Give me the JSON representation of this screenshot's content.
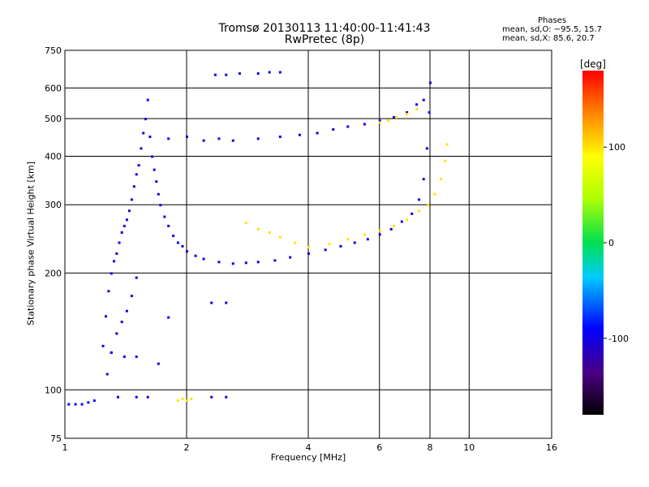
{
  "chart_data": {
    "type": "scatter",
    "title": "Tromsø 20130113 11:40:00-11:41:43",
    "subtitle": "RwPretec (8p)",
    "xlabel": "Frequency [MHz]",
    "ylabel": "Stationary phase Virtual Height [km]",
    "x_scale": "log",
    "y_scale": "log",
    "xlim": [
      1,
      16
    ],
    "ylim": [
      75,
      750
    ],
    "grid": true,
    "x_ticks": [
      1,
      2,
      4,
      6,
      8,
      10,
      16
    ],
    "x_tick_labels": [
      "1",
      "2",
      "4",
      "6",
      "8",
      "10",
      "16"
    ],
    "y_ticks": [
      75,
      100,
      200,
      300,
      400,
      500,
      600,
      750
    ],
    "y_tick_labels": [
      "75",
      "100",
      "200",
      "300",
      "400",
      "500",
      "600",
      "750"
    ],
    "stats": {
      "heading": "Phases",
      "lines": [
        "mean, sd,O: −95.5, 15.7",
        "mean, sd,X:  85.6, 20.7"
      ]
    },
    "colorbar": {
      "title": "[deg]",
      "range": [
        -180,
        180
      ],
      "ticks": [
        100,
        0,
        -100
      ],
      "tick_labels": [
        "100",
        "0",
        "-100"
      ]
    },
    "traces": [
      {
        "name": "",
        "phase": -100,
        "points": [
          [
            1.02,
            92
          ],
          [
            1.06,
            92
          ],
          [
            1.1,
            92
          ],
          [
            1.14,
            93
          ],
          [
            1.18,
            94
          ],
          [
            1.24,
            130
          ],
          [
            1.26,
            155
          ],
          [
            1.28,
            180
          ],
          [
            1.3,
            200
          ],
          [
            1.32,
            215
          ],
          [
            1.34,
            225
          ],
          [
            1.36,
            240
          ],
          [
            1.38,
            255
          ],
          [
            1.4,
            265
          ],
          [
            1.42,
            275
          ],
          [
            1.27,
            110
          ],
          [
            1.3,
            125
          ],
          [
            1.34,
            140
          ],
          [
            1.38,
            150
          ],
          [
            1.42,
            160
          ],
          [
            1.46,
            175
          ],
          [
            1.5,
            195
          ],
          [
            1.44,
            290
          ],
          [
            1.46,
            310
          ],
          [
            1.48,
            335
          ],
          [
            1.5,
            360
          ],
          [
            1.52,
            380
          ],
          [
            1.54,
            420
          ],
          [
            1.56,
            460
          ],
          [
            1.58,
            500
          ],
          [
            1.6,
            560
          ],
          [
            1.62,
            450
          ],
          [
            1.64,
            400
          ],
          [
            1.66,
            370
          ],
          [
            1.68,
            345
          ],
          [
            1.7,
            320
          ],
          [
            1.72,
            300
          ],
          [
            1.76,
            280
          ],
          [
            1.8,
            265
          ],
          [
            1.85,
            250
          ],
          [
            1.9,
            240
          ],
          [
            1.95,
            235
          ],
          [
            2.0,
            228
          ],
          [
            2.1,
            222
          ],
          [
            2.2,
            218
          ],
          [
            2.4,
            214
          ],
          [
            2.6,
            212
          ],
          [
            2.8,
            213
          ],
          [
            3.0,
            214
          ],
          [
            3.3,
            216
          ],
          [
            3.6,
            220
          ],
          [
            4.0,
            225
          ],
          [
            4.4,
            230
          ],
          [
            4.8,
            235
          ],
          [
            5.2,
            240
          ],
          [
            5.6,
            245
          ],
          [
            6.0,
            252
          ],
          [
            6.4,
            260
          ],
          [
            6.8,
            272
          ],
          [
            7.2,
            285
          ],
          [
            7.5,
            310
          ],
          [
            7.7,
            350
          ],
          [
            7.85,
            420
          ],
          [
            7.95,
            520
          ],
          [
            8.0,
            620
          ],
          [
            1.8,
            445
          ],
          [
            2.0,
            450
          ],
          [
            2.2,
            440
          ],
          [
            2.4,
            445
          ],
          [
            2.6,
            440
          ],
          [
            3.0,
            445
          ],
          [
            3.4,
            450
          ],
          [
            3.8,
            455
          ],
          [
            4.2,
            460
          ],
          [
            4.6,
            470
          ],
          [
            5.0,
            478
          ],
          [
            5.5,
            485
          ],
          [
            6.0,
            495
          ],
          [
            6.5,
            505
          ],
          [
            7.0,
            520
          ],
          [
            7.4,
            545
          ],
          [
            7.7,
            560
          ],
          [
            2.35,
            650
          ],
          [
            2.5,
            650
          ],
          [
            2.7,
            655
          ],
          [
            3.0,
            655
          ],
          [
            3.2,
            660
          ],
          [
            3.4,
            660
          ],
          [
            1.3,
            125
          ],
          [
            1.4,
            122
          ],
          [
            1.5,
            122
          ],
          [
            1.7,
            117
          ],
          [
            1.8,
            154
          ],
          [
            2.3,
            168
          ],
          [
            2.5,
            168
          ],
          [
            1.35,
            96
          ],
          [
            1.5,
            96
          ],
          [
            1.6,
            96
          ],
          [
            2.3,
            96
          ],
          [
            2.5,
            96
          ]
        ]
      },
      {
        "name": "",
        "phase": 100,
        "points": [
          [
            2.8,
            270
          ],
          [
            3.0,
            260
          ],
          [
            3.2,
            255
          ],
          [
            3.4,
            248
          ],
          [
            3.7,
            240
          ],
          [
            4.0,
            234
          ],
          [
            4.5,
            238
          ],
          [
            5.0,
            245
          ],
          [
            5.5,
            252
          ],
          [
            6.0,
            258
          ],
          [
            6.5,
            265
          ],
          [
            7.0,
            275
          ],
          [
            7.5,
            290
          ],
          [
            7.9,
            300
          ],
          [
            8.2,
            320
          ],
          [
            8.5,
            350
          ],
          [
            8.7,
            390
          ],
          [
            8.8,
            430
          ],
          [
            1.9,
            94
          ],
          [
            1.95,
            95
          ],
          [
            2.0,
            94
          ],
          [
            2.05,
            95
          ],
          [
            6.0,
            490
          ],
          [
            6.3,
            495
          ],
          [
            6.6,
            505
          ],
          [
            7.0,
            515
          ],
          [
            7.4,
            530
          ]
        ]
      }
    ]
  }
}
